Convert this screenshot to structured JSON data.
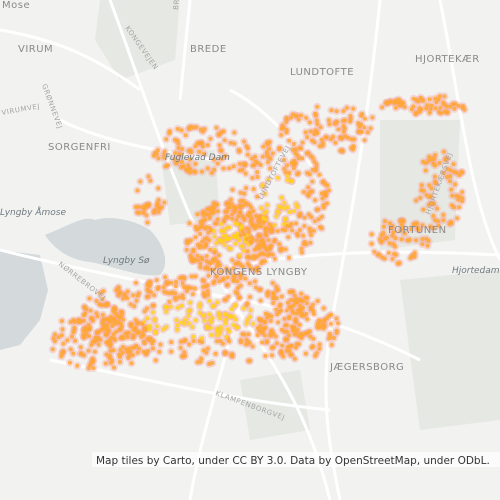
{
  "map": {
    "labels": [
      "Mose",
      "VIRUM",
      "BREDE",
      "LUNDTOFTE",
      "HJORTEKÆR",
      "SORGENFRI",
      "Fuglevad Dam",
      "Lyngby Åmose",
      "Lyngby Sø",
      "KONGENS LYNGBY",
      "FORTUNEN",
      "Hjortedam",
      "JÆGERSBORG"
    ],
    "streets": [
      "KONGEVEJEN",
      "BREDEVEJ",
      "GRØNNEVEJ",
      "VIRUMVEJ",
      "LUNDTOFTEVEJ",
      "HJORTEKÆRSVEJ",
      "NØRREBROVEJ",
      "KLAMPENBORGVEJ"
    ],
    "attribution": "Map tiles by Carto, under CC BY 3.0. Data by OpenStreetMap, under ODbL."
  }
}
